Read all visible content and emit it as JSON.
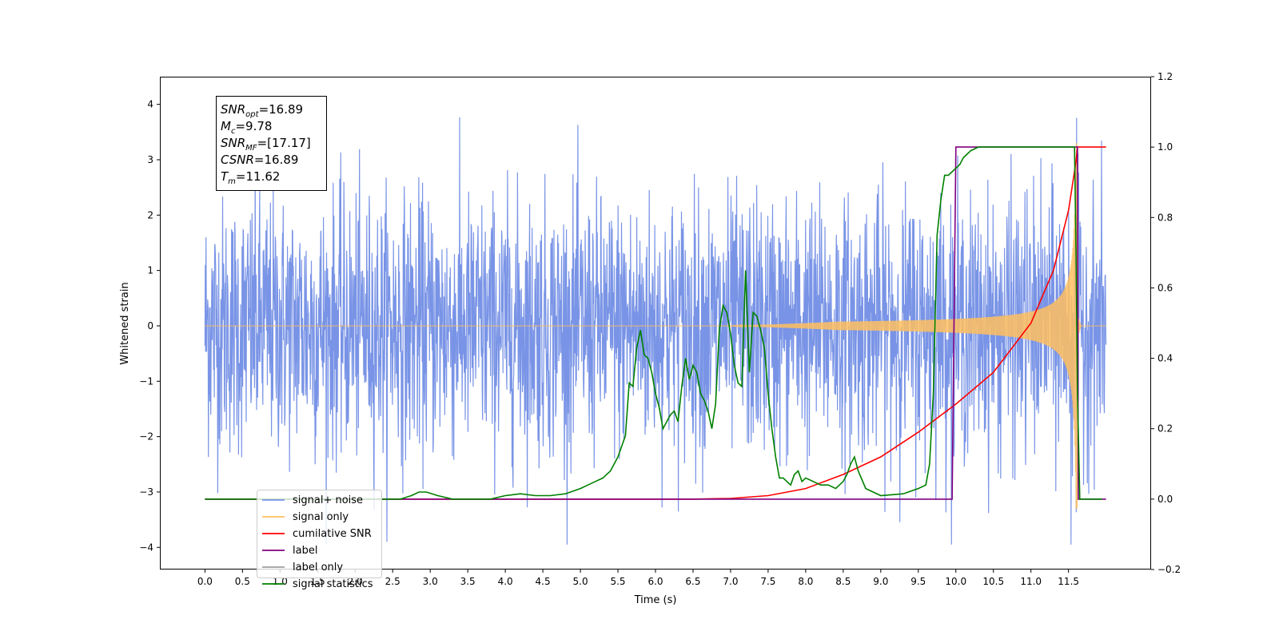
{
  "chart_data": {
    "type": "line",
    "xlabel": "Time (s)",
    "ylabel": "Whitened strain",
    "xlim": [
      -0.6,
      12.6
    ],
    "ylim": [
      -4.4,
      4.5
    ],
    "ylim_right": [
      -0.2,
      1.2
    ],
    "x_ticks": [
      0.0,
      0.5,
      1.0,
      1.5,
      2.0,
      2.5,
      3.0,
      3.5,
      4.0,
      4.5,
      5.0,
      5.5,
      6.0,
      6.5,
      7.0,
      7.5,
      8.0,
      8.5,
      9.0,
      9.5,
      10.0,
      10.5,
      11.0,
      11.5
    ],
    "x_tick_labels": [
      "0.0",
      "0.5",
      "1.0",
      "1.5",
      "2.0",
      "2.5",
      "3.0",
      "3.5",
      "4.0",
      "4.5",
      "5.0",
      "5.5",
      "6.0",
      "6.5",
      "7.0",
      "7.5",
      "8.0",
      "8.5",
      "9.0",
      "9.5",
      "10.0",
      "10.5",
      "11.0",
      "11.5"
    ],
    "y_ticks": [
      4,
      3,
      2,
      1,
      0,
      -1,
      -2,
      -3,
      -4
    ],
    "y_tick_labels": [
      "4",
      "3",
      "2",
      "1",
      "0",
      "−1",
      "−2",
      "−3",
      "−4"
    ],
    "y_right_ticks": [
      1.2,
      1.0,
      0.8,
      0.6,
      0.4,
      0.2,
      0.0,
      -0.2
    ],
    "y_right_tick_labels": [
      "1.2",
      "1.0",
      "0.8",
      "0.6",
      "0.4",
      "0.2",
      "0.0",
      "−0.2"
    ],
    "grid": false,
    "legend_position": "lower-left",
    "info_box": {
      "lines": [
        {
          "sym": "SNR",
          "sub": "opt",
          "val": "=16.89"
        },
        {
          "sym": "M",
          "sub": "c",
          "val": "=9.78"
        },
        {
          "sym": "SNR",
          "sub": "MF",
          "val": "=[17.17]"
        },
        {
          "sym": "CSNR",
          "sub": "",
          "val": "=16.89"
        },
        {
          "sym": "T",
          "sub": "m",
          "val": "=11.62"
        }
      ]
    },
    "series": [
      {
        "name": "signal+ noise",
        "color": "#7994e6",
        "axis": "left",
        "description_range": [
          -3.9,
          4.1
        ],
        "x_range": [
          0.0,
          12.0
        ],
        "noise_amplitude": 1.15
      },
      {
        "name": "signal only",
        "color": "#ffbf5f",
        "axis": "left",
        "x_range": [
          0.0,
          12.0
        ],
        "peak_time": 11.62,
        "peak_amplitude": 3.3
      },
      {
        "name": "cumilative SNR",
        "color": "#ff0000",
        "axis": "right",
        "x": [
          0.0,
          6.5,
          7.0,
          7.5,
          8.0,
          8.5,
          9.0,
          9.5,
          10.0,
          10.5,
          11.0,
          11.3,
          11.5,
          11.6,
          11.62,
          12.0
        ],
        "y": [
          0.0,
          0.0,
          0.002,
          0.01,
          0.03,
          0.07,
          0.12,
          0.19,
          0.27,
          0.36,
          0.5,
          0.65,
          0.82,
          0.96,
          1.0,
          1.0
        ]
      },
      {
        "name": "label",
        "color": "#800080",
        "axis": "right",
        "x": [
          0.0,
          9.95,
          10.0,
          11.62,
          11.63,
          12.0
        ],
        "y": [
          0.0,
          0.0,
          1.0,
          1.0,
          0.0,
          0.0
        ]
      },
      {
        "name": "label only",
        "color": "#9e9e9e",
        "axis": "right",
        "x": [],
        "y": []
      },
      {
        "name": "signal statistics",
        "color": "#008000",
        "axis": "right",
        "x": [
          0.0,
          2.6,
          2.75,
          2.85,
          2.95,
          3.1,
          3.3,
          3.8,
          4.0,
          4.2,
          4.4,
          4.6,
          4.8,
          5.0,
          5.1,
          5.2,
          5.3,
          5.4,
          5.5,
          5.6,
          5.65,
          5.7,
          5.75,
          5.8,
          5.85,
          5.9,
          5.95,
          6.0,
          6.05,
          6.1,
          6.15,
          6.2,
          6.25,
          6.3,
          6.35,
          6.4,
          6.45,
          6.5,
          6.55,
          6.6,
          6.65,
          6.7,
          6.75,
          6.8,
          6.85,
          6.9,
          6.95,
          7.0,
          7.05,
          7.1,
          7.15,
          7.2,
          7.25,
          7.3,
          7.35,
          7.4,
          7.45,
          7.5,
          7.55,
          7.6,
          7.65,
          7.7,
          7.75,
          7.8,
          7.85,
          7.9,
          7.95,
          8.0,
          8.1,
          8.2,
          8.3,
          8.4,
          8.5,
          8.55,
          8.6,
          8.65,
          8.7,
          8.8,
          9.0,
          9.3,
          9.5,
          9.6,
          9.65,
          9.7,
          9.75,
          9.8,
          9.85,
          9.9,
          9.95,
          10.0,
          10.05,
          10.1,
          10.15,
          10.2,
          10.3,
          10.5,
          11.0,
          11.5,
          11.58,
          11.6,
          11.62,
          11.65,
          11.7,
          11.8,
          11.95
        ],
        "y": [
          0.0,
          0.0,
          0.01,
          0.02,
          0.02,
          0.01,
          0.0,
          0.0,
          0.01,
          0.015,
          0.01,
          0.01,
          0.015,
          0.03,
          0.04,
          0.05,
          0.06,
          0.08,
          0.12,
          0.18,
          0.33,
          0.32,
          0.43,
          0.48,
          0.41,
          0.4,
          0.36,
          0.3,
          0.26,
          0.2,
          0.22,
          0.24,
          0.25,
          0.22,
          0.32,
          0.4,
          0.34,
          0.38,
          0.36,
          0.3,
          0.28,
          0.25,
          0.2,
          0.27,
          0.48,
          0.55,
          0.53,
          0.47,
          0.38,
          0.33,
          0.32,
          0.65,
          0.36,
          0.53,
          0.52,
          0.48,
          0.43,
          0.3,
          0.2,
          0.12,
          0.06,
          0.06,
          0.05,
          0.04,
          0.07,
          0.08,
          0.05,
          0.06,
          0.05,
          0.04,
          0.04,
          0.03,
          0.05,
          0.07,
          0.1,
          0.12,
          0.08,
          0.03,
          0.01,
          0.015,
          0.03,
          0.04,
          0.1,
          0.3,
          0.75,
          0.85,
          0.92,
          0.92,
          0.93,
          0.94,
          0.95,
          0.97,
          0.98,
          0.99,
          1.0,
          1.0,
          1.0,
          1.0,
          1.0,
          0.7,
          0.3,
          0.0,
          0.0,
          0.0,
          0.0
        ]
      }
    ]
  }
}
